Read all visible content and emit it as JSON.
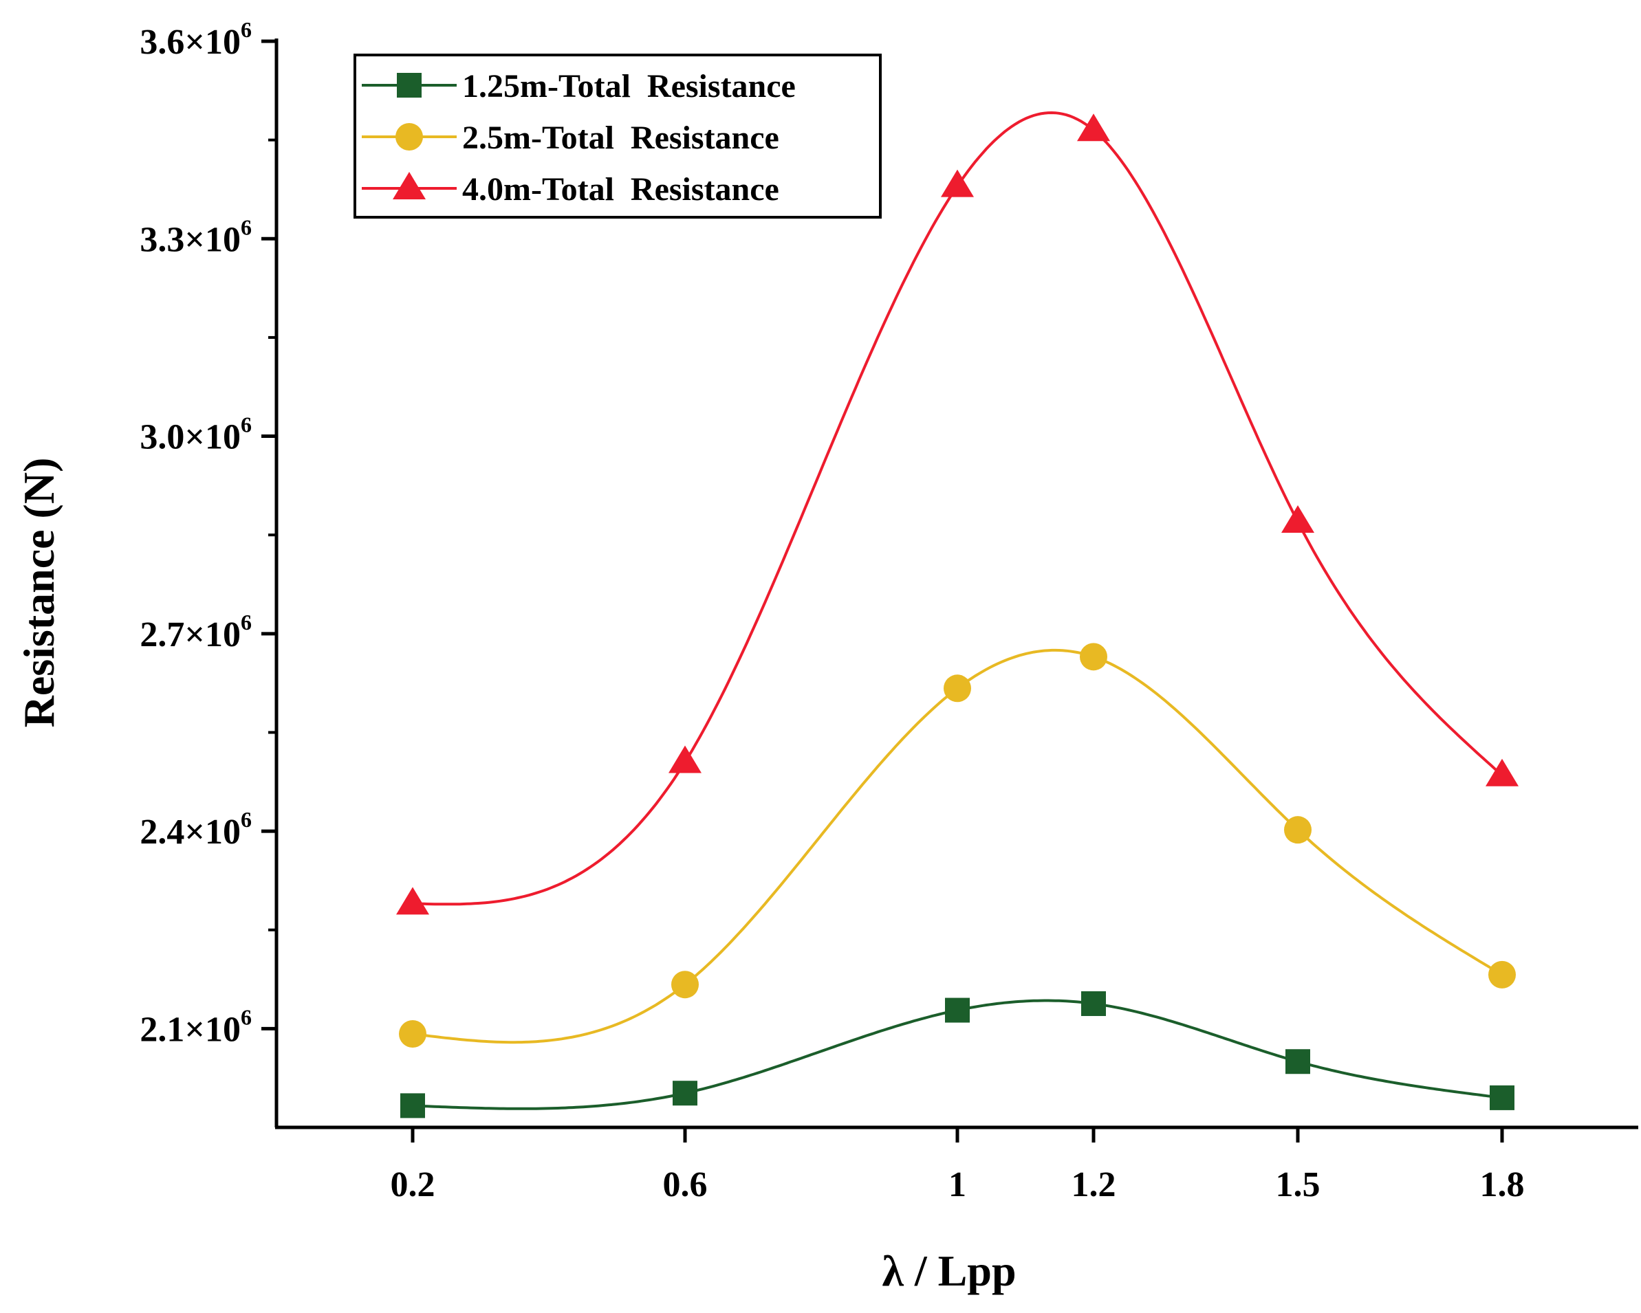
{
  "chart_data": {
    "type": "line",
    "xlabel": "λ / Lpp",
    "ylabel": "Resistance (N)",
    "x_tick_labels": [
      "0.2",
      "0.6",
      "1",
      "1.2",
      "1.5",
      "1.8"
    ],
    "x": [
      0.2,
      0.6,
      1.0,
      1.2,
      1.5,
      1.8
    ],
    "xlim": [
      0.0,
      2.0
    ],
    "ylim": [
      1950000,
      3600000
    ],
    "y_ticks": [
      {
        "value": 2100000,
        "mantissa": "2.1×10",
        "exp": "6"
      },
      {
        "value": 2400000,
        "mantissa": "2.4×10",
        "exp": "6"
      },
      {
        "value": 2700000,
        "mantissa": "2.7×10",
        "exp": "6"
      },
      {
        "value": 3000000,
        "mantissa": "3.0×10",
        "exp": "6"
      },
      {
        "value": 3300000,
        "mantissa": "3.3×10",
        "exp": "6"
      },
      {
        "value": 3600000,
        "mantissa": "3.6×10",
        "exp": "6"
      }
    ],
    "y_minor_ticks": [
      2250000,
      2550000,
      2850000,
      3150000,
      3450000
    ],
    "legend_position": "top-left",
    "series": [
      {
        "name": "1.25m-Total  Resistance",
        "marker": "square",
        "color": "#1b5e2b",
        "values": [
          1983000,
          2002000,
          2128000,
          2138000,
          2050000,
          1995000
        ]
      },
      {
        "name": "2.5m-Total  Resistance",
        "marker": "circle",
        "color": "#e8b923",
        "values": [
          2092000,
          2167000,
          2617000,
          2665000,
          2402000,
          2182000
        ]
      },
      {
        "name": "4.0m-Total  Resistance",
        "marker": "triangle",
        "color": "#ee1c2e",
        "values": [
          2290000,
          2505000,
          3380000,
          3465000,
          2870000,
          2485000
        ]
      }
    ]
  }
}
